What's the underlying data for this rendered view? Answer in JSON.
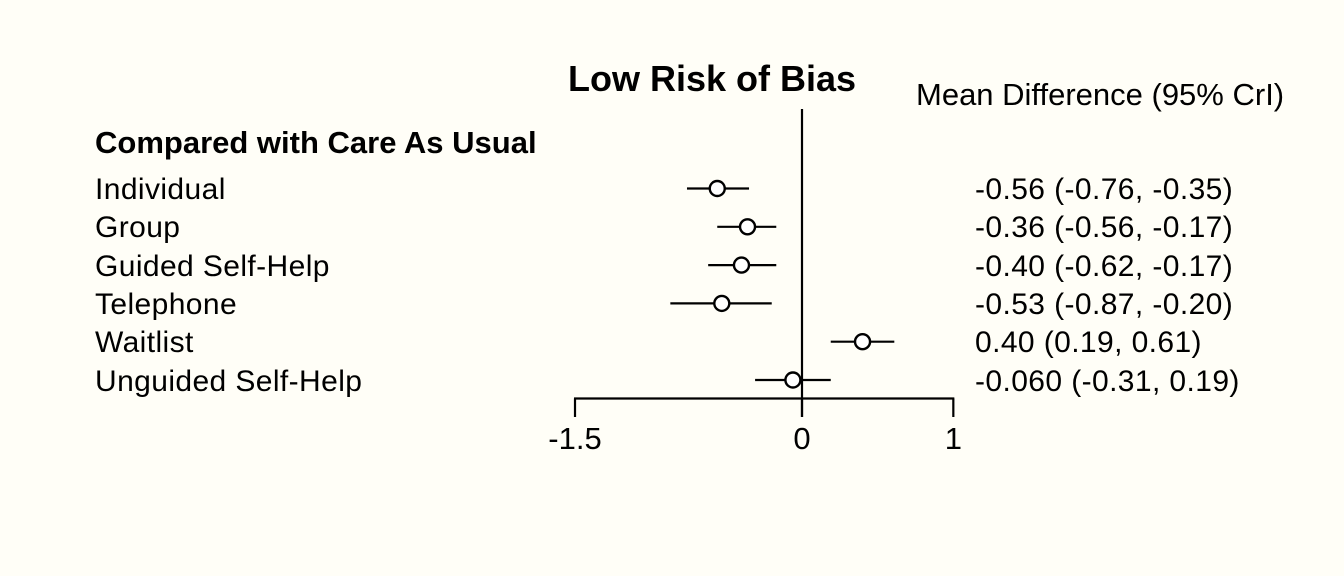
{
  "chart_data": {
    "type": "forest",
    "title": "Low Risk of Bias",
    "comparator_label": "Compared with Care As Usual",
    "value_column_header": "Mean Difference (95% CrI)",
    "x_axis": {
      "range": [
        -1.5,
        1
      ],
      "ticks": [
        -1.5,
        0,
        1
      ],
      "tick_labels": [
        "-1.5",
        "0",
        "1"
      ],
      "reference_line": 0
    },
    "rows": [
      {
        "label": "Individual",
        "mean": -0.56,
        "lower": -0.76,
        "upper": -0.35,
        "value_text": "-0.56 (-0.76, -0.35)"
      },
      {
        "label": "Group",
        "mean": -0.36,
        "lower": -0.56,
        "upper": -0.17,
        "value_text": "-0.36 (-0.56, -0.17)"
      },
      {
        "label": "Guided Self-Help",
        "mean": -0.4,
        "lower": -0.62,
        "upper": -0.17,
        "value_text": "-0.40 (-0.62, -0.17)"
      },
      {
        "label": "Telephone",
        "mean": -0.53,
        "lower": -0.87,
        "upper": -0.2,
        "value_text": "-0.53 (-0.87, -0.20)"
      },
      {
        "label": "Waitlist",
        "mean": 0.4,
        "lower": 0.19,
        "upper": 0.61,
        "value_text": "0.40 (0.19, 0.61)"
      },
      {
        "label": "Unguided Self-Help",
        "mean": -0.06,
        "lower": -0.31,
        "upper": 0.19,
        "value_text": "-0.060 (-0.31, 0.19)"
      }
    ],
    "legend": null,
    "grid": false
  },
  "colors": {
    "background": "#FFFEF7",
    "ink": "#000000",
    "marker_fill": "#FFFFFF"
  }
}
